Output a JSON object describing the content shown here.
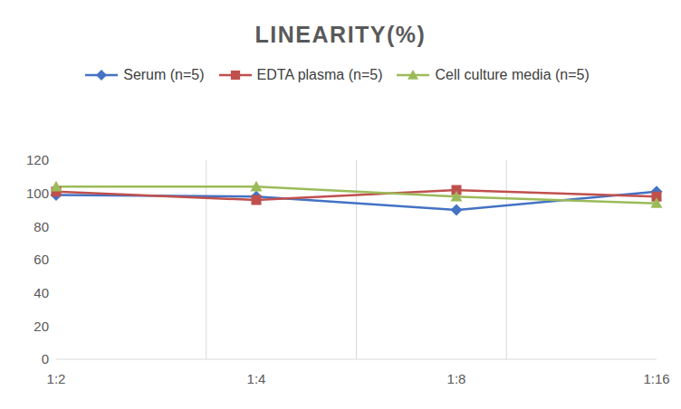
{
  "chart_data": {
    "type": "line",
    "title": "LINEARITY(%)",
    "categories": [
      "1:2",
      "1:4",
      "1:8",
      "1:16"
    ],
    "series": [
      {
        "name": "Serum (n=5)",
        "color": "#4472c4",
        "marker": "diamond",
        "values": [
          99,
          98,
          90,
          101
        ]
      },
      {
        "name": "EDTA plasma (n=5)",
        "color": "#c0504d",
        "marker": "square",
        "values": [
          101,
          96,
          102,
          98
        ]
      },
      {
        "name": "Cell culture media (n=5)",
        "color": "#9bbb59",
        "marker": "triangle",
        "values": [
          104,
          104,
          98,
          94
        ]
      }
    ],
    "ylim": [
      0,
      120
    ],
    "yticks": [
      0,
      20,
      40,
      60,
      80,
      100,
      120
    ],
    "grid": true,
    "legend": "top"
  }
}
